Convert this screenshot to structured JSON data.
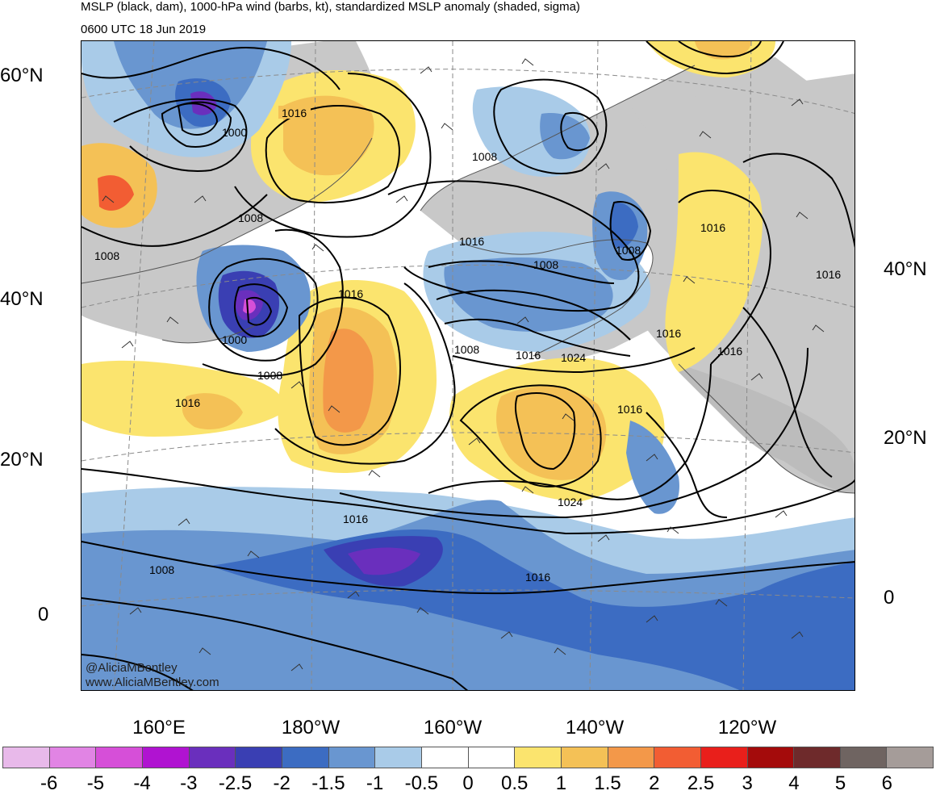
{
  "header": {
    "title": "MSLP (black, dam), 1000-hPa wind (barbs, kt), standardized MSLP anomaly (shaded, sigma)",
    "valid_time": "0600 UTC 18 Jun 2019"
  },
  "credits": {
    "handle": "@AliciaMBentley",
    "website": "www.AliciaMBentley.com"
  },
  "axes": {
    "left_lat_labels": [
      "60°N",
      "40°N",
      "20°N",
      "0"
    ],
    "right_lat_labels": [
      "40°N",
      "20°N",
      "0"
    ],
    "lon_labels": [
      "160°E",
      "180°W",
      "160°W",
      "140°W",
      "120°W"
    ]
  },
  "contour_labels": [
    "1016",
    "1000",
    "1008",
    "1008",
    "1008",
    "1016",
    "1008",
    "1016",
    "1008",
    "1016",
    "1000",
    "1008",
    "1016",
    "1008",
    "1016",
    "1024",
    "1016",
    "1016",
    "1016",
    "1016",
    "1024",
    "1016",
    "1016",
    "1008"
  ],
  "colorbar": {
    "colors": [
      "#e8b9ea",
      "#e184e4",
      "#d64fd8",
      "#b013d1",
      "#6a2fbd",
      "#3a3fb3",
      "#3c6cc2",
      "#6996d0",
      "#a9cbe8",
      "#ffffff",
      "#ffffff",
      "#fbe46e",
      "#f4c156",
      "#f39849",
      "#f25d33",
      "#e91f1b",
      "#a40b0b",
      "#6e2a2b",
      "#6f6461",
      "#a59c99"
    ],
    "tick_labels": [
      "-6",
      "-5",
      "-4",
      "-3",
      "-2.5",
      "-2",
      "-1.5",
      "-1",
      "-0.5",
      "0",
      "0.5",
      "1",
      "1.5",
      "2",
      "2.5",
      "3",
      "4",
      "5",
      "6"
    ]
  }
}
